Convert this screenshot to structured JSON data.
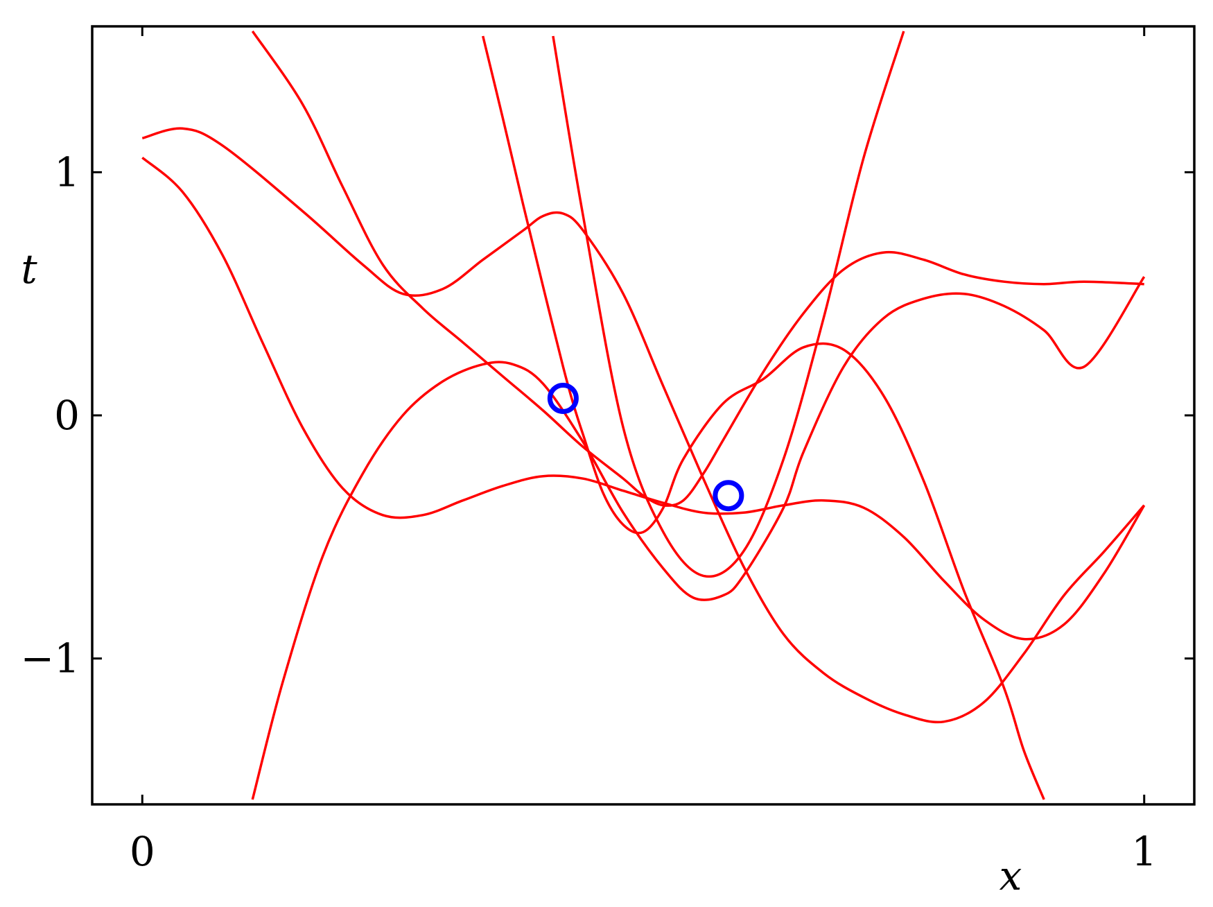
{
  "chart_data": {
    "type": "line",
    "xlabel": "x",
    "ylabel": "t",
    "xlim": [
      -0.05,
      1.05
    ],
    "ylim": [
      -1.6,
      1.6
    ],
    "xticks": [
      0,
      1
    ],
    "xtick_labels": [
      "0",
      "1"
    ],
    "yticks": [
      -1,
      0,
      1
    ],
    "ytick_labels": [
      "−1",
      "0",
      "1"
    ],
    "grid": false,
    "line_color": "#ff0000",
    "marker_color": "#0000ff",
    "series": [
      {
        "points": [
          [
            0,
            1.14
          ],
          [
            0.04,
            1.18
          ],
          [
            0.08,
            1.11
          ],
          [
            0.16,
            0.84
          ],
          [
            0.22,
            0.62
          ],
          [
            0.26,
            0.5
          ],
          [
            0.3,
            0.52
          ],
          [
            0.34,
            0.64
          ],
          [
            0.38,
            0.76
          ],
          [
            0.4,
            0.82
          ],
          [
            0.42,
            0.83
          ],
          [
            0.44,
            0.76
          ],
          [
            0.48,
            0.5
          ],
          [
            0.52,
            0.12
          ],
          [
            0.56,
            -0.26
          ],
          [
            0.6,
            -0.62
          ],
          [
            0.64,
            -0.9
          ],
          [
            0.68,
            -1.06
          ],
          [
            0.72,
            -1.16
          ],
          [
            0.76,
            -1.23
          ],
          [
            0.8,
            -1.26
          ],
          [
            0.84,
            -1.18
          ],
          [
            0.88,
            -0.98
          ],
          [
            0.92,
            -0.74
          ],
          [
            0.96,
            -0.56
          ],
          [
            1.0,
            -0.37
          ]
        ]
      },
      {
        "points": [
          [
            0,
            1.06
          ],
          [
            0.04,
            0.92
          ],
          [
            0.08,
            0.66
          ],
          [
            0.12,
            0.3
          ],
          [
            0.16,
            -0.05
          ],
          [
            0.2,
            -0.3
          ],
          [
            0.24,
            -0.41
          ],
          [
            0.28,
            -0.41
          ],
          [
            0.32,
            -0.35
          ],
          [
            0.36,
            -0.29
          ],
          [
            0.4,
            -0.25
          ],
          [
            0.44,
            -0.26
          ],
          [
            0.48,
            -0.31
          ],
          [
            0.52,
            -0.36
          ],
          [
            0.56,
            -0.4
          ],
          [
            0.6,
            -0.4
          ],
          [
            0.64,
            -0.37
          ],
          [
            0.68,
            -0.35
          ],
          [
            0.72,
            -0.38
          ],
          [
            0.76,
            -0.5
          ],
          [
            0.8,
            -0.68
          ],
          [
            0.84,
            -0.84
          ],
          [
            0.88,
            -0.92
          ],
          [
            0.92,
            -0.86
          ],
          [
            0.96,
            -0.65
          ],
          [
            1.0,
            -0.37
          ]
        ]
      },
      {
        "points": [
          [
            0.11,
            1.58
          ],
          [
            0.16,
            1.28
          ],
          [
            0.2,
            0.94
          ],
          [
            0.24,
            0.62
          ],
          [
            0.28,
            0.44
          ],
          [
            0.32,
            0.3
          ],
          [
            0.36,
            0.16
          ],
          [
            0.4,
            0.02
          ],
          [
            0.44,
            -0.13
          ],
          [
            0.48,
            -0.26
          ],
          [
            0.5,
            -0.33
          ],
          [
            0.52,
            -0.37
          ],
          [
            0.54,
            -0.35
          ],
          [
            0.56,
            -0.24
          ],
          [
            0.58,
            -0.1
          ],
          [
            0.62,
            0.18
          ],
          [
            0.66,
            0.42
          ],
          [
            0.7,
            0.6
          ],
          [
            0.74,
            0.67
          ],
          [
            0.78,
            0.64
          ],
          [
            0.82,
            0.58
          ],
          [
            0.86,
            0.55
          ],
          [
            0.9,
            0.54
          ],
          [
            0.94,
            0.55
          ],
          [
            1.0,
            0.54
          ]
        ]
      },
      {
        "points": [
          [
            0.11,
            -1.58
          ],
          [
            0.14,
            -1.1
          ],
          [
            0.18,
            -0.58
          ],
          [
            0.22,
            -0.24
          ],
          [
            0.26,
            0.0
          ],
          [
            0.3,
            0.14
          ],
          [
            0.34,
            0.21
          ],
          [
            0.37,
            0.21
          ],
          [
            0.4,
            0.13
          ],
          [
            0.44,
            -0.11
          ],
          [
            0.48,
            -0.4
          ],
          [
            0.52,
            -0.63
          ],
          [
            0.55,
            -0.75
          ],
          [
            0.58,
            -0.74
          ],
          [
            0.6,
            -0.66
          ],
          [
            0.64,
            -0.38
          ],
          [
            0.66,
            -0.15
          ],
          [
            0.7,
            0.2
          ],
          [
            0.74,
            0.4
          ],
          [
            0.78,
            0.48
          ],
          [
            0.82,
            0.5
          ],
          [
            0.86,
            0.45
          ],
          [
            0.9,
            0.35
          ],
          [
            0.94,
            0.2
          ],
          [
            1.0,
            0.57
          ]
        ]
      },
      {
        "points": [
          [
            0.34,
            1.56
          ],
          [
            0.36,
            1.22
          ],
          [
            0.38,
            0.87
          ],
          [
            0.4,
            0.53
          ],
          [
            0.42,
            0.2
          ],
          [
            0.43,
            0.05
          ],
          [
            0.44,
            -0.08
          ],
          [
            0.46,
            -0.32
          ],
          [
            0.48,
            -0.45
          ],
          [
            0.5,
            -0.48
          ],
          [
            0.52,
            -0.38
          ],
          [
            0.54,
            -0.18
          ],
          [
            0.58,
            0.05
          ],
          [
            0.62,
            0.15
          ],
          [
            0.66,
            0.28
          ],
          [
            0.7,
            0.27
          ],
          [
            0.74,
            0.08
          ],
          [
            0.78,
            -0.27
          ],
          [
            0.82,
            -0.72
          ],
          [
            0.86,
            -1.12
          ],
          [
            0.88,
            -1.38
          ],
          [
            0.9,
            -1.58
          ]
        ]
      },
      {
        "points": [
          [
            0.41,
            1.56
          ],
          [
            0.44,
            0.82
          ],
          [
            0.48,
            -0.05
          ],
          [
            0.52,
            -0.48
          ],
          [
            0.56,
            -0.66
          ],
          [
            0.6,
            -0.56
          ],
          [
            0.64,
            -0.18
          ],
          [
            0.68,
            0.4
          ],
          [
            0.72,
            1.06
          ],
          [
            0.76,
            1.58
          ]
        ]
      }
    ],
    "observations": [
      {
        "x": 0.42,
        "y": 0.07
      },
      {
        "x": 0.585,
        "y": -0.33
      }
    ]
  }
}
